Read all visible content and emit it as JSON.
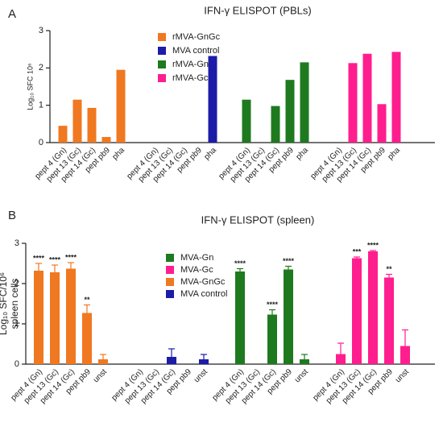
{
  "chart_data": [
    {
      "type": "bar",
      "label": "A",
      "title": "IFN-γ ELISPOT (PBLs)",
      "y_label": [
        "Log₁₀ SFC 10⁶"
      ],
      "categories": [
        "pept 4 (Gn)",
        "pept 13 (Gc)",
        "pept 14 (Gc)",
        "pept pb9",
        "pha",
        "pept 4 (Gn)",
        "pept 13 (Gc)",
        "pept 14 (Gc)",
        "pept pb9",
        "pha",
        "pept 4 (Gn)",
        "pept 13 (Gc)",
        "pept 14 (Gc)",
        "pept pb9",
        "pha",
        "pept 4 (Gn)",
        "pept 13 (Gc)",
        "pept 14 (Gc)",
        "pept pb9",
        "pha"
      ],
      "series": [
        {
          "name": "rMVA-GnGc",
          "color": "#f07820",
          "values": [
            0.45,
            1.15,
            0.93,
            0.15,
            1.95,
            null,
            null,
            null,
            null,
            null,
            null,
            null,
            null,
            null,
            null,
            null,
            null,
            null,
            null,
            null
          ]
        },
        {
          "name": "MVA control",
          "color": "#1c1ca8",
          "values": [
            null,
            null,
            null,
            null,
            null,
            null,
            null,
            null,
            null,
            2.32,
            null,
            null,
            null,
            null,
            null,
            null,
            null,
            null,
            null,
            null
          ]
        },
        {
          "name": "rMVA-Gn",
          "color": "#1f7a1f",
          "values": [
            null,
            null,
            null,
            null,
            null,
            null,
            null,
            null,
            null,
            null,
            1.15,
            null,
            0.98,
            1.68,
            2.15,
            null,
            null,
            null,
            null,
            null
          ]
        },
        {
          "name": "rMVA-Gc",
          "color": "#ff1e8e",
          "values": [
            null,
            null,
            null,
            null,
            null,
            null,
            null,
            null,
            null,
            null,
            null,
            null,
            null,
            null,
            null,
            null,
            2.13,
            2.38,
            1.03,
            2.43
          ]
        }
      ],
      "ylim": [
        0,
        3
      ],
      "yticks": [
        0,
        1,
        2,
        3
      ]
    },
    {
      "type": "bar",
      "label": "B",
      "title": "IFN-γ ELISPOT (spleen)",
      "y_label": [
        "Log₁₀ SFC/10⁶",
        "spleen cells"
      ],
      "categories": [
        "pept 4 (Gn)",
        "pept 13 (Gc)",
        "pept 14 (Gc)",
        "pept pb9",
        "unst",
        "pept 4 (Gn)",
        "pept 13 (Gc)",
        "pept 14 (Gc)",
        "pept pb9",
        "unst",
        "pept 4 (Gn)",
        "pept 13 (Gc)",
        "pept 14 (Gc)",
        "pept pb9",
        "unst",
        "pept 4 (Gn)",
        "pept 13 (Gc)",
        "pept 14 (Gc)",
        "pept pb9",
        "unst"
      ],
      "series": [
        {
          "name": "MVA-Gn",
          "color": "#1f7a1f",
          "values": [
            null,
            null,
            null,
            null,
            null,
            null,
            null,
            null,
            null,
            null,
            2.3,
            null,
            1.23,
            2.35,
            0.12,
            null,
            null,
            null,
            null,
            null
          ],
          "errors": [
            null,
            null,
            null,
            null,
            null,
            null,
            null,
            null,
            null,
            null,
            0.07,
            null,
            0.12,
            0.08,
            0.12,
            null,
            null,
            null,
            null,
            null
          ],
          "annotations": [
            null,
            null,
            null,
            null,
            null,
            null,
            null,
            null,
            null,
            null,
            "****",
            null,
            "****",
            "****",
            null,
            null,
            null,
            null,
            null,
            null
          ]
        },
        {
          "name": "MVA-Gc",
          "color": "#ff1e8e",
          "values": [
            null,
            null,
            null,
            null,
            null,
            null,
            null,
            null,
            null,
            null,
            null,
            null,
            null,
            null,
            null,
            0.25,
            2.63,
            2.8,
            2.15,
            0.45
          ],
          "errors": [
            null,
            null,
            null,
            null,
            null,
            null,
            null,
            null,
            null,
            null,
            null,
            null,
            null,
            null,
            null,
            0.27,
            0.03,
            0.02,
            0.08,
            0.4
          ],
          "annotations": [
            null,
            null,
            null,
            null,
            null,
            null,
            null,
            null,
            null,
            null,
            null,
            null,
            null,
            null,
            null,
            null,
            "***",
            "****",
            "**",
            null
          ]
        },
        {
          "name": "MVA-GnGc",
          "color": "#f07820",
          "values": [
            2.32,
            2.28,
            2.37,
            1.27,
            0.12,
            null,
            null,
            null,
            null,
            null,
            null,
            null,
            null,
            null,
            null,
            null,
            null,
            null,
            null,
            null
          ],
          "errors": [
            0.18,
            0.18,
            0.15,
            0.2,
            0.12,
            null,
            null,
            null,
            null,
            null,
            null,
            null,
            null,
            null,
            null,
            null,
            null,
            null,
            null,
            null
          ],
          "annotations": [
            "****",
            "****",
            "****",
            "**",
            null,
            null,
            null,
            null,
            null,
            null,
            null,
            null,
            null,
            null,
            null,
            null,
            null,
            null,
            null,
            null
          ]
        },
        {
          "name": "MVA control",
          "color": "#1c1ca8",
          "values": [
            null,
            null,
            null,
            null,
            null,
            null,
            null,
            0.18,
            null,
            0.12,
            null,
            null,
            null,
            null,
            null,
            null,
            null,
            null,
            null,
            null
          ],
          "errors": [
            null,
            null,
            null,
            null,
            null,
            null,
            null,
            0.2,
            null,
            0.12,
            null,
            null,
            null,
            null,
            null,
            null,
            null,
            null,
            null,
            null
          ],
          "annotations": [
            null,
            null,
            null,
            null,
            null,
            null,
            null,
            null,
            null,
            null,
            null,
            null,
            null,
            null,
            null,
            null,
            null,
            null,
            null,
            null
          ]
        }
      ],
      "ylim": [
        0,
        3
      ],
      "yticks": [
        0,
        1,
        2,
        3
      ]
    }
  ]
}
